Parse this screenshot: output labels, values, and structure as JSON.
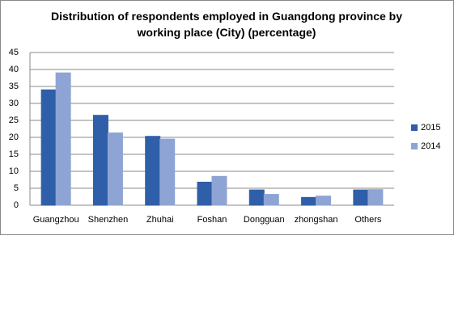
{
  "chart_data": {
    "type": "bar",
    "title": "Distribution of respondents employed in Guangdong province by working place (City) (percentage)",
    "categories": [
      "Guangzhou",
      "Shenzhen",
      "Zhuhai",
      "Foshan",
      "Dongguan",
      "zhongshan",
      "Others"
    ],
    "series": [
      {
        "name": "2015",
        "color": "#2e5fa8",
        "values": [
          34,
          26.5,
          20.3,
          6.8,
          4.5,
          2.3,
          4.5
        ]
      },
      {
        "name": "2014",
        "color": "#8ea4d4",
        "values": [
          39,
          21.3,
          19.5,
          8.5,
          3.2,
          2.7,
          4.6
        ]
      }
    ],
    "ylim": [
      0,
      45
    ],
    "yticks": [
      0,
      5,
      10,
      15,
      20,
      25,
      30,
      35,
      40,
      45
    ],
    "grid": true,
    "legend": "right"
  }
}
